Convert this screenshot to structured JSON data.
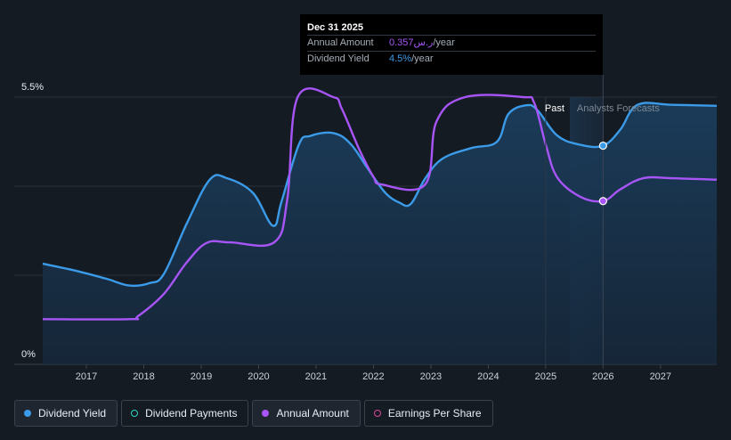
{
  "chart_data": {
    "type": "line",
    "ylabels": [
      "5.5%",
      "0%"
    ],
    "ylim": [
      0,
      5.5
    ],
    "xlim": [
      2016.24,
      2027.98
    ],
    "xticks": [
      "2017",
      "2018",
      "2019",
      "2020",
      "2021",
      "2022",
      "2023",
      "2024",
      "2025",
      "2026",
      "2027"
    ],
    "past_label": "Past",
    "forecast_label": "Analysts Forecasts",
    "forecast_start": 2025.42,
    "highlight_x": 2026.0,
    "grid": true,
    "series": [
      {
        "name": "Dividend Yield",
        "color": "#3b9be8",
        "area": true,
        "points": [
          [
            2016.24,
            2.07
          ],
          [
            2016.8,
            1.93
          ],
          [
            2017.35,
            1.76
          ],
          [
            2017.75,
            1.62
          ],
          [
            2018.1,
            1.67
          ],
          [
            2018.35,
            1.86
          ],
          [
            2018.75,
            2.9
          ],
          [
            2019.15,
            3.8
          ],
          [
            2019.45,
            3.83
          ],
          [
            2019.9,
            3.53
          ],
          [
            2020.25,
            2.85
          ],
          [
            2020.4,
            3.35
          ],
          [
            2020.7,
            4.52
          ],
          [
            2020.9,
            4.7
          ],
          [
            2021.3,
            4.76
          ],
          [
            2021.6,
            4.54
          ],
          [
            2021.9,
            4.03
          ],
          [
            2022.2,
            3.54
          ],
          [
            2022.45,
            3.33
          ],
          [
            2022.65,
            3.3
          ],
          [
            2022.9,
            3.82
          ],
          [
            2023.2,
            4.23
          ],
          [
            2023.7,
            4.45
          ],
          [
            2024.15,
            4.58
          ],
          [
            2024.35,
            5.15
          ],
          [
            2024.65,
            5.33
          ],
          [
            2024.85,
            5.24
          ],
          [
            2025.2,
            4.71
          ],
          [
            2025.6,
            4.52
          ],
          [
            2026.0,
            4.5
          ],
          [
            2026.3,
            4.83
          ],
          [
            2026.6,
            5.34
          ],
          [
            2027.2,
            5.34
          ],
          [
            2027.98,
            5.32
          ]
        ]
      },
      {
        "name": "Annual Amount",
        "color": "#a855f7",
        "area": false,
        "points": [
          [
            2016.24,
            0.93
          ],
          [
            2017.75,
            0.93
          ],
          [
            2017.9,
            0.99
          ],
          [
            2018.35,
            1.45
          ],
          [
            2018.75,
            2.1
          ],
          [
            2019.1,
            2.5
          ],
          [
            2019.5,
            2.51
          ],
          [
            2020.27,
            2.51
          ],
          [
            2020.5,
            3.4
          ],
          [
            2020.68,
            5.5
          ],
          [
            2021.3,
            5.5
          ],
          [
            2021.45,
            5.26
          ],
          [
            2021.75,
            4.43
          ],
          [
            2022.0,
            3.86
          ],
          [
            2022.15,
            3.7
          ],
          [
            2022.9,
            3.7
          ],
          [
            2023.1,
            5.0
          ],
          [
            2023.6,
            5.5
          ],
          [
            2024.6,
            5.5
          ],
          [
            2024.8,
            5.38
          ],
          [
            2025.0,
            4.53
          ],
          [
            2025.2,
            3.85
          ],
          [
            2025.6,
            3.45
          ],
          [
            2026.0,
            3.36
          ],
          [
            2026.3,
            3.6
          ],
          [
            2026.7,
            3.83
          ],
          [
            2027.2,
            3.83
          ],
          [
            2027.98,
            3.8
          ]
        ]
      }
    ],
    "markers": [
      {
        "series": "Dividend Yield",
        "x": 2026.0,
        "y": 4.5
      },
      {
        "series": "Annual Amount",
        "x": 2026.0,
        "y": 3.36
      }
    ]
  },
  "tooltip": {
    "date": "Dec 31 2025",
    "rows": [
      {
        "label": "Annual Amount",
        "value": "0.357",
        "currency": "ر.س",
        "suffix": "/year",
        "color": "#a855f7"
      },
      {
        "label": "Dividend Yield",
        "value": "4.5%",
        "suffix": "/year",
        "color": "#3b9be8"
      }
    ]
  },
  "legend": [
    {
      "label": "Dividend Yield",
      "color": "#3b9be8",
      "filled": true,
      "active": true
    },
    {
      "label": "Dividend Payments",
      "color": "#2dd4bf",
      "filled": false,
      "active": false
    },
    {
      "label": "Annual Amount",
      "color": "#a855f7",
      "filled": true,
      "active": true
    },
    {
      "label": "Earnings Per Share",
      "color": "#e04896",
      "filled": false,
      "active": false
    }
  ]
}
